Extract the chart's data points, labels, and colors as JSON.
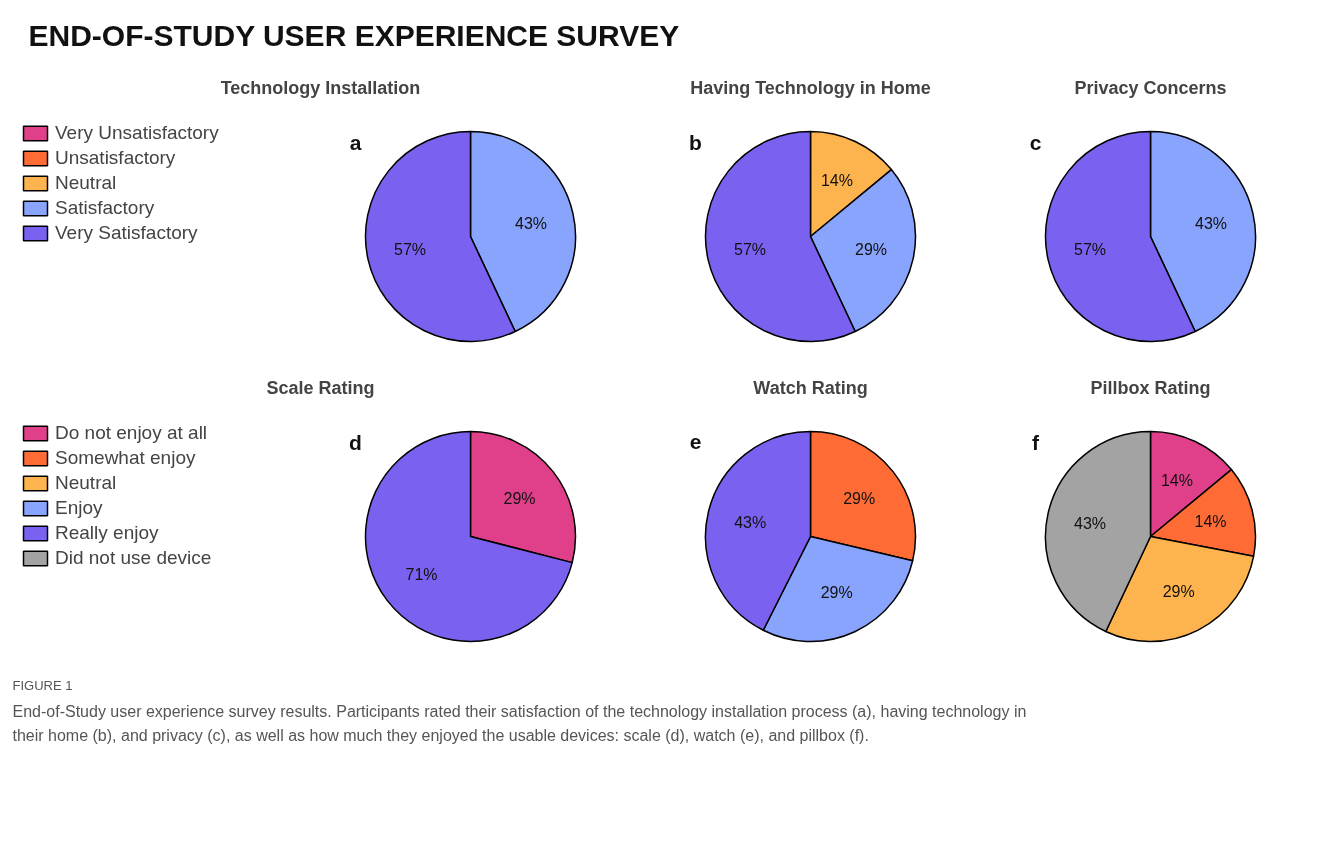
{
  "chart_data": [
    {
      "type": "other",
      "title": "END-OF-STUDY USER EXPERIENCE SURVEY",
      "annotations": [
        "FIGURE 1",
        "End-of-Study user experience survey results. Participants rated their satisfaction of the technology installation process (a), having technology in their home (b), and privacy (c), as well as how much they enjoyed the usable devices: scale (d), watch (e), and pillbox (f)."
      ]
    },
    {
      "type": "pie",
      "title": "Technology Installation",
      "annotations": [
        "a"
      ],
      "legend": "left",
      "categories": [
        "Very Unsatisfactory",
        "Unsatisfactory",
        "Neutral",
        "Satisfactory",
        "Very Satisfactory"
      ],
      "values": [
        0,
        0,
        0,
        43,
        57
      ],
      "colors": [
        "#e0408a",
        "#ff6b35",
        "#fdb44e",
        "#88a4fc",
        "#7b61f0"
      ],
      "value_labels": [
        null,
        null,
        null,
        "43%",
        "57%"
      ]
    },
    {
      "type": "pie",
      "title": "Having Technology in Home",
      "annotations": [
        "b"
      ],
      "categories": [
        null,
        null,
        null
      ],
      "values": [
        14,
        29,
        57
      ],
      "colors": [
        "#fdb44e",
        "#88a4fc",
        "#7b61f0"
      ],
      "value_labels": [
        "14%",
        "29%",
        "57%"
      ]
    },
    {
      "type": "pie",
      "title": "Privacy Concerns",
      "annotations": [
        "c"
      ],
      "categories": [
        null,
        null
      ],
      "values": [
        43,
        57
      ],
      "colors": [
        "#88a4fc",
        "#7b61f0"
      ],
      "value_labels": [
        "43%",
        "57%"
      ]
    },
    {
      "type": "pie",
      "title": "Scale Rating",
      "annotations": [
        "d"
      ],
      "legend": "left",
      "categories": [
        "Do not enjoy at all",
        "Somewhat enjoy",
        "Neutral",
        "Enjoy",
        "Really enjoy",
        "Did not use device"
      ],
      "values": [
        29,
        0,
        0,
        0,
        71,
        0
      ],
      "colors": [
        "#e0408a",
        "#ff6b35",
        "#fdb44e",
        "#88a4fc",
        "#7b61f0",
        "#a3a3a3"
      ],
      "value_labels": [
        "29%",
        null,
        null,
        null,
        "71%",
        null
      ]
    },
    {
      "type": "pie",
      "title": "Watch Rating",
      "annotations": [
        "e"
      ],
      "categories": [
        null,
        null,
        null
      ],
      "values": [
        29,
        29,
        43
      ],
      "colors": [
        "#ff6b35",
        "#88a4fc",
        "#7b61f0"
      ],
      "value_labels": [
        "29%",
        "29%",
        "43%"
      ]
    },
    {
      "type": "pie",
      "title": "Pillbox Rating",
      "annotations": [
        "f"
      ],
      "categories": [
        null,
        null,
        null,
        null
      ],
      "values": [
        14,
        14,
        29,
        43
      ],
      "colors": [
        "#e0408a",
        "#ff6b35",
        "#fdb44e",
        "#a3a3a3"
      ],
      "value_labels": [
        "14%",
        "14%",
        "29%",
        "43%"
      ]
    }
  ]
}
